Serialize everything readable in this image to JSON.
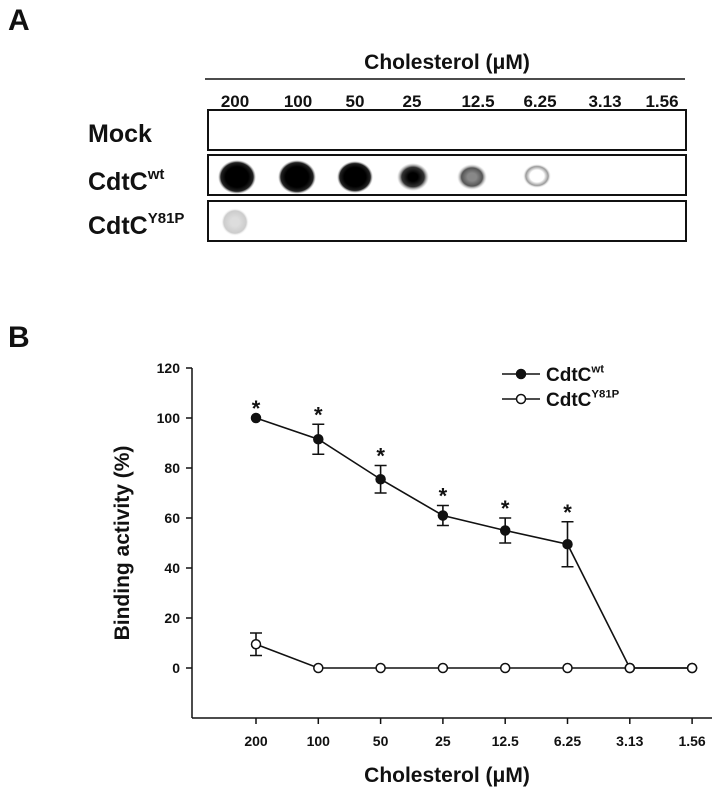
{
  "panel_a": {
    "label": "A",
    "title": "Cholesterol (μM)",
    "columns": [
      "200",
      "100",
      "50",
      "25",
      "12.5",
      "6.25",
      "3.13",
      "1.56"
    ],
    "rows": [
      {
        "name": "Mock"
      },
      {
        "name": "CdtC",
        "superscript": "wt"
      },
      {
        "name": "CdtC",
        "superscript": "Y81P"
      }
    ]
  },
  "chart_data": {
    "type": "line",
    "panel_label": "B",
    "x_label": "Cholesterol (μM)",
    "y_label": "Binding activity (%)",
    "categories": [
      "200",
      "100",
      "50",
      "25",
      "12.5",
      "6.25",
      "3.13",
      "1.56"
    ],
    "ylim": [
      -20,
      120
    ],
    "yticks": [
      0,
      20,
      40,
      60,
      80,
      100,
      120
    ],
    "legend": "upper right",
    "series": [
      {
        "name": "CdtC",
        "superscript": "wt",
        "color": "#111111",
        "marker_fill": "#111111",
        "values": [
          100,
          91.5,
          75.5,
          61,
          55,
          49.5,
          0,
          0
        ],
        "errors": [
          0,
          6,
          5.5,
          4,
          5,
          9,
          0,
          0
        ],
        "markers": [
          "*",
          "*",
          "*",
          "*",
          "*",
          "*",
          null,
          null
        ]
      },
      {
        "name": "CdtC",
        "superscript": "Y81P",
        "color": "#111111",
        "marker_fill": "#ffffff",
        "values": [
          9.5,
          0,
          0,
          0,
          0,
          0,
          0,
          0
        ],
        "errors": [
          4.5,
          0,
          0,
          0,
          0,
          0,
          0,
          0
        ]
      }
    ]
  }
}
